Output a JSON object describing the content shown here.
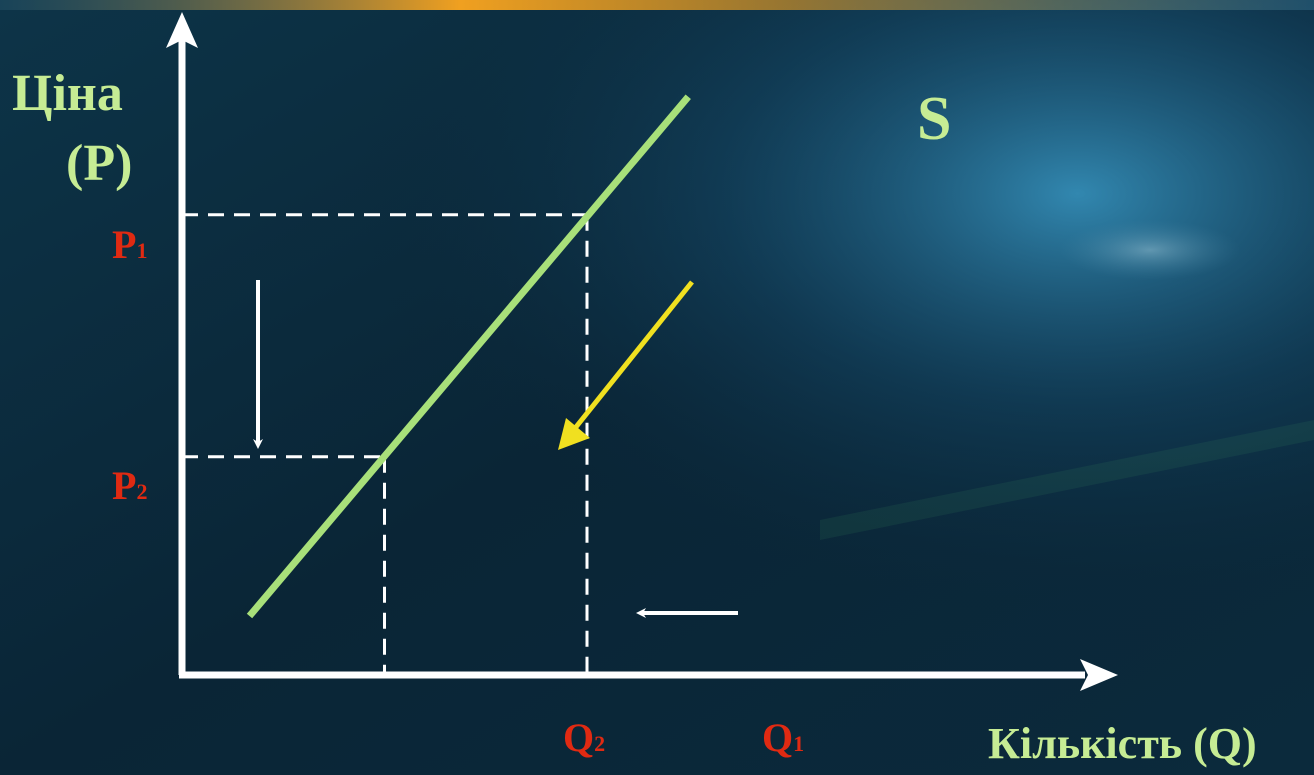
{
  "colors": {
    "background": "#0a2233",
    "top_stripe": "#f0a020",
    "axes": "#ffffff",
    "supply_curve": "#a8e07a",
    "price_quantity_labels": "#e02a12",
    "axis_titles": "#c6ec94",
    "movement_arrow": "#f0e020"
  },
  "chart_data": {
    "type": "line",
    "title": "",
    "ylabel_line1": "Ціна",
    "ylabel_line2": "(P)",
    "xlabel": "Кількість (Q)",
    "grid": false,
    "series": [
      {
        "name": "S",
        "x": [
          1,
          7.5
        ],
        "y": [
          1,
          9.8
        ]
      }
    ],
    "y_markers": [
      {
        "letter": "P",
        "subscript": "1",
        "value": 7.8
      },
      {
        "letter": "P",
        "subscript": "2",
        "value": 3.7
      }
    ],
    "x_markers": [
      {
        "letter": "Q",
        "subscript": "2",
        "value": 3
      },
      {
        "letter": "Q",
        "subscript": "1",
        "value": 6
      }
    ],
    "annotations": [
      {
        "type": "arrow",
        "meaning": "price decrease",
        "direction": "down",
        "color": "white"
      },
      {
        "type": "arrow",
        "meaning": "quantity decrease",
        "direction": "left",
        "color": "white"
      },
      {
        "type": "arrow",
        "meaning": "movement along supply curve",
        "direction": "down-left",
        "color": "yellow"
      }
    ]
  }
}
